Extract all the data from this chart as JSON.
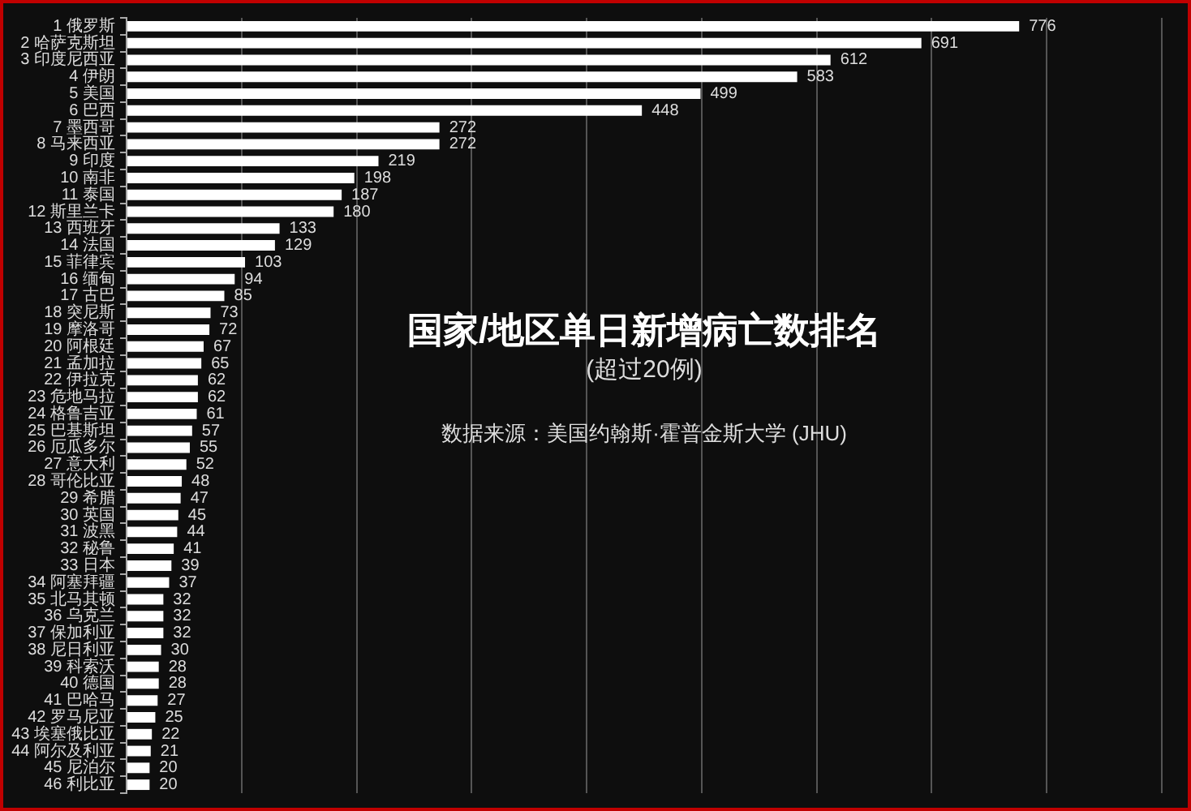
{
  "chart_data": {
    "type": "bar",
    "orientation": "horizontal",
    "title": "国家/地区单日新增病亡数排名",
    "subtitle": "(超过20例)",
    "annotations": [
      "数据来源：美国约翰斯·霍普金斯大学 (JHU)"
    ],
    "categories": [
      "1 俄罗斯",
      "2 哈萨克斯坦",
      "3 印度尼西亚",
      "4 伊朗",
      "5 美国",
      "6 巴西",
      "7 墨西哥",
      "8 马来西亚",
      "9 印度",
      "10 南非",
      "11 泰国",
      "12 斯里兰卡",
      "13 西班牙",
      "14 法国",
      "15 菲律宾",
      "16 缅甸",
      "17 古巴",
      "18 突尼斯",
      "19 摩洛哥",
      "20 阿根廷",
      "21 孟加拉",
      "22 伊拉克",
      "23 危地马拉",
      "24 格鲁吉亚",
      "25 巴基斯坦",
      "26 厄瓜多尔",
      "27 意大利",
      "28 哥伦比亚",
      "29 希腊",
      "30 英国",
      "31 波黑",
      "32 秘鲁",
      "33 日本",
      "34 阿塞拜疆",
      "35 北马其顿",
      "36 乌克兰",
      "37 保加利亚",
      "38 尼日利亚",
      "39 科索沃",
      "40 德国",
      "41 巴哈马",
      "42 罗马尼亚",
      "43 埃塞俄比亚",
      "44 阿尔及利亚",
      "45 尼泊尔",
      "46 利比亚"
    ],
    "values": [
      776,
      691,
      612,
      583,
      499,
      448,
      272,
      272,
      219,
      198,
      187,
      180,
      133,
      129,
      103,
      94,
      85,
      73,
      72,
      67,
      65,
      62,
      62,
      61,
      57,
      55,
      52,
      48,
      47,
      45,
      44,
      41,
      39,
      37,
      32,
      32,
      32,
      30,
      28,
      28,
      27,
      25,
      22,
      21,
      20,
      20
    ],
    "color": "#ffffff",
    "xlim": [
      0,
      900
    ],
    "xticks": [
      {
        "value": 0,
        "label": null
      },
      {
        "value": 100,
        "label": null
      },
      {
        "value": 200,
        "label": null
      },
      {
        "value": 300,
        "label": null
      },
      {
        "value": 400,
        "label": null
      },
      {
        "value": 500,
        "label": null
      },
      {
        "value": 600,
        "label": null
      },
      {
        "value": 700,
        "label": null
      },
      {
        "value": 800,
        "label": null
      },
      {
        "value": 900,
        "label": null
      }
    ],
    "tick_labels": "y",
    "grid": "x",
    "data_labels": true
  }
}
